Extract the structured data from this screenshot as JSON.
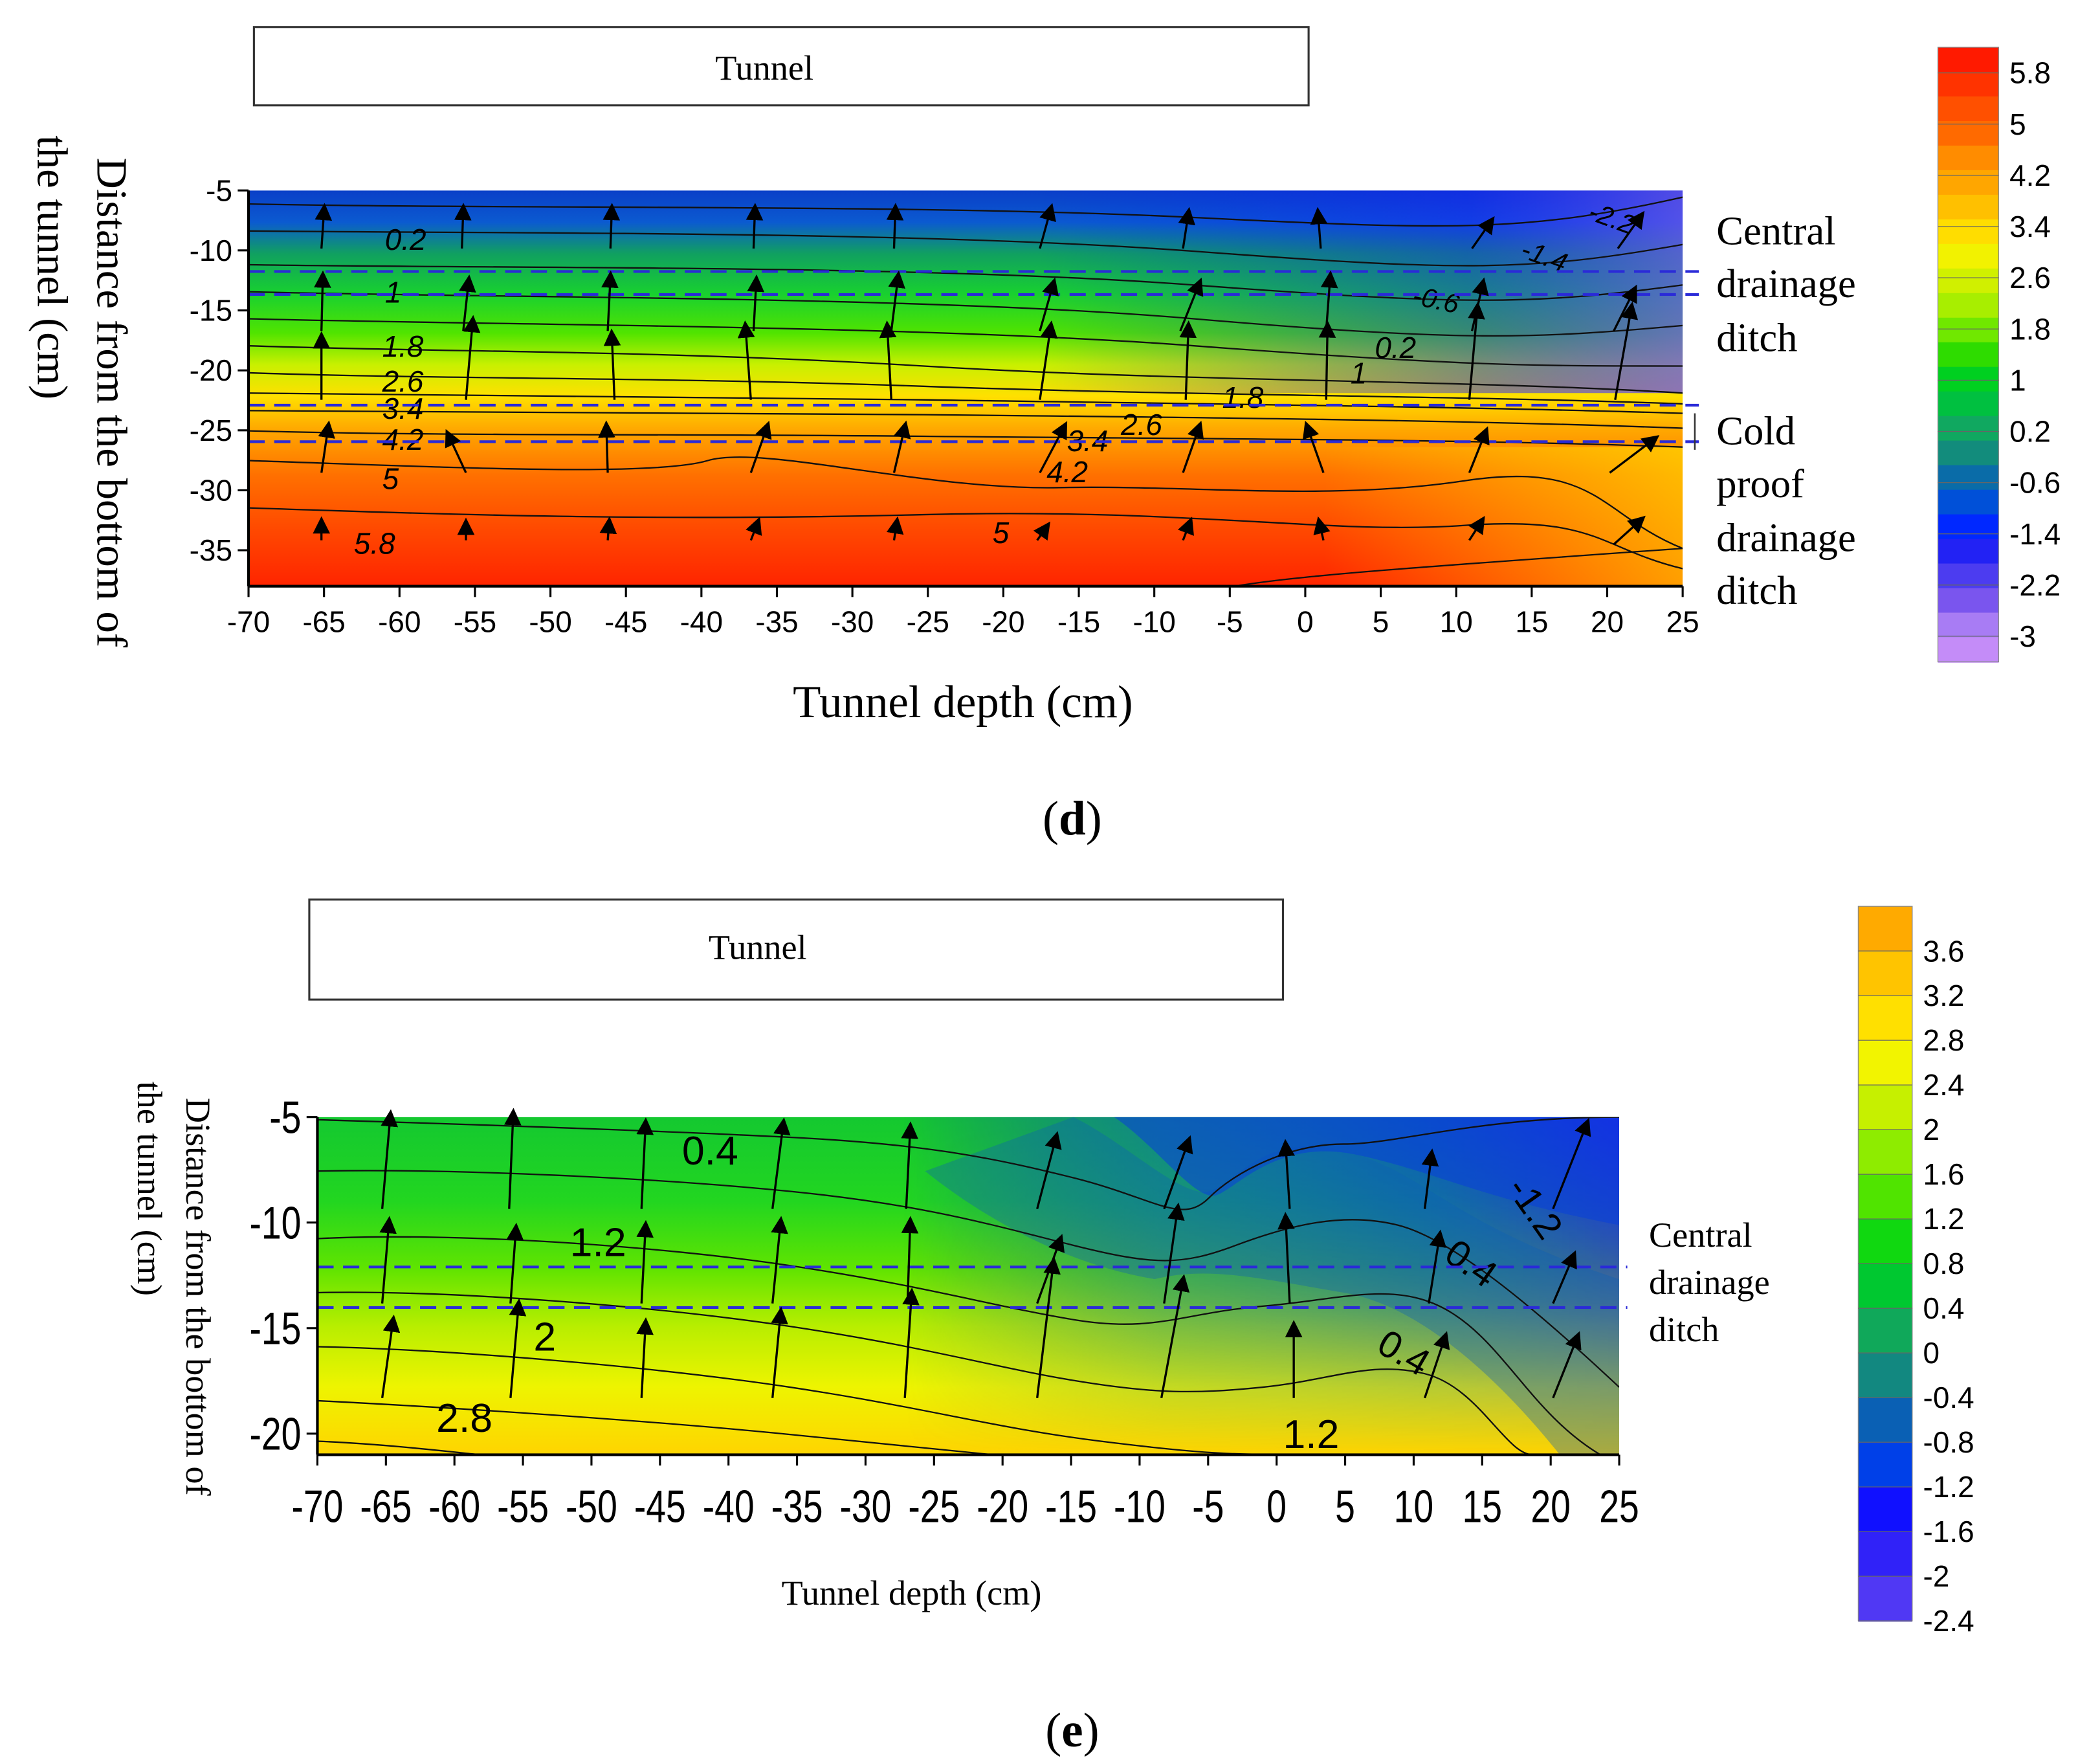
{
  "chart_data": [
    {
      "type": "heatmap",
      "panel_label": "(d)",
      "panel_letter": "d",
      "title_box": "Tunnel",
      "xlabel": "Tunnel depth (cm)",
      "ylabel_line1": "Distance from the bottom of",
      "ylabel_line2": "the tunnel (cm)",
      "x_ticks": [
        -70,
        -65,
        -60,
        -55,
        -50,
        -45,
        -40,
        -35,
        -30,
        -25,
        -20,
        -15,
        -10,
        -5,
        0,
        5,
        10,
        15,
        20,
        25
      ],
      "y_ticks": [
        -5,
        -10,
        -15,
        -20,
        -25,
        -30,
        -35
      ],
      "xlim": [
        -70,
        25
      ],
      "ylim": [
        -38,
        -5
      ],
      "annotations": [
        {
          "lines": [
            "Central",
            "drainage",
            "ditch"
          ],
          "y_range": [
            -12,
            -13.8
          ]
        },
        {
          "lines": [
            "Cold",
            "proof",
            "drainage",
            "ditch"
          ],
          "y_range": [
            -23,
            -26
          ]
        }
      ],
      "colorbar_labels": [
        "5.8",
        "5",
        "4.2",
        "3.4",
        "2.6",
        "1.8",
        "1",
        "0.2",
        "-0.6",
        "-1.4",
        "-2.2",
        "-3"
      ],
      "colorbar_range": [
        -3.4,
        6.2
      ],
      "colorbar_colors": [
        "#ff1a00",
        "#ff3300",
        "#ff5000",
        "#ff6a00",
        "#ff8c00",
        "#ffa600",
        "#ffc000",
        "#ffdd00",
        "#f2f200",
        "#d0f000",
        "#a8ee00",
        "#70e800",
        "#2edc00",
        "#00d020",
        "#00c040",
        "#10a860",
        "#128c7c",
        "#0a6ca8",
        "#0050d8",
        "#0028ff",
        "#2222f4",
        "#4c3cf0",
        "#7a55ee",
        "#a87cf4",
        "#c48cf8"
      ],
      "contour_levels_labeled": [
        {
          "value": "0.2",
          "x": -63,
          "y": -9.8
        },
        {
          "value": "1",
          "x": -63,
          "y": -14.3
        },
        {
          "value": "1.8",
          "x": -63,
          "y": -19.2
        },
        {
          "value": "2.6",
          "x": -63,
          "y": -21.8
        },
        {
          "value": "3.4",
          "x": -63,
          "y": -23.6
        },
        {
          "value": "4.2",
          "x": -63,
          "y": -26
        },
        {
          "value": "5",
          "x": -63,
          "y": -29.2
        },
        {
          "value": "5.8",
          "x": -61,
          "y": -34.8
        },
        {
          "value": "-2.2",
          "x": 21,
          "y": -7.5
        },
        {
          "value": "-1.4",
          "x": 14,
          "y": -10.8
        },
        {
          "value": "-0.6",
          "x": 9,
          "y": -14.5
        },
        {
          "value": "0.2",
          "x": 6.5,
          "y": -19.2
        },
        {
          "value": "1",
          "x": 3.5,
          "y": -21.5
        },
        {
          "value": "1.8",
          "x": -6,
          "y": -23.5
        },
        {
          "value": "2.6",
          "x": -11.5,
          "y": -24.5
        },
        {
          "value": "3.4",
          "x": -16,
          "y": -26.3
        },
        {
          "value": "4.2",
          "x": -16,
          "y": -28.1
        },
        {
          "value": "5",
          "x": -20,
          "y": -33.7
        }
      ]
    },
    {
      "type": "heatmap",
      "panel_label": "(e)",
      "panel_letter": "e",
      "title_box": "Tunnel",
      "xlabel": "Tunnel depth (cm)",
      "ylabel_line1": "Distance from the bottom of",
      "ylabel_line2": "the tunnel (cm)",
      "x_ticks": [
        -70,
        -65,
        -60,
        -55,
        -50,
        -45,
        -40,
        -35,
        -30,
        -25,
        -20,
        -15,
        -10,
        -5,
        0,
        5,
        10,
        15,
        20,
        25
      ],
      "y_ticks": [
        -5,
        -10,
        -15,
        -20
      ],
      "xlim": [
        -70,
        25
      ],
      "ylim": [
        -21,
        -5
      ],
      "annotations": [
        {
          "lines": [
            "Central",
            "drainage",
            "ditch"
          ],
          "y_range": [
            -12,
            -14
          ]
        }
      ],
      "colorbar_labels": [
        "3.6",
        "3.2",
        "2.8",
        "2.4",
        "2",
        "1.6",
        "1.2",
        "0.8",
        "0.4",
        "0",
        "-0.4",
        "-0.8",
        "-1.2",
        "-1.6",
        "-2",
        "-2.4"
      ],
      "colorbar_range": [
        -2.4,
        4.0
      ],
      "colorbar_colors": [
        "#ffaa00",
        "#ffc400",
        "#ffe000",
        "#f2f400",
        "#c6f000",
        "#8eec00",
        "#50e400",
        "#10d810",
        "#00c830",
        "#10a85a",
        "#128880",
        "#0a60b4",
        "#0040e8",
        "#1010ff",
        "#3022f8",
        "#5038f4"
      ],
      "contour_levels_labeled": [
        {
          "value": "0.4",
          "x": -41,
          "y": -6.6
        },
        {
          "value": "1.2",
          "x": -45,
          "y": -10.8
        },
        {
          "value": "2",
          "x": -53.5,
          "y": -15.3
        },
        {
          "value": "2.8",
          "x": -60,
          "y": -19.2
        },
        {
          "value": "-1.2",
          "x": 13,
          "y": -8.8
        },
        {
          "value": "0.4",
          "x": 12,
          "y": -12.7
        },
        {
          "value": "0.4",
          "x": 7.5,
          "y": -16.2
        },
        {
          "value": "1.2",
          "x": 2.5,
          "y": -20.2
        }
      ]
    }
  ]
}
